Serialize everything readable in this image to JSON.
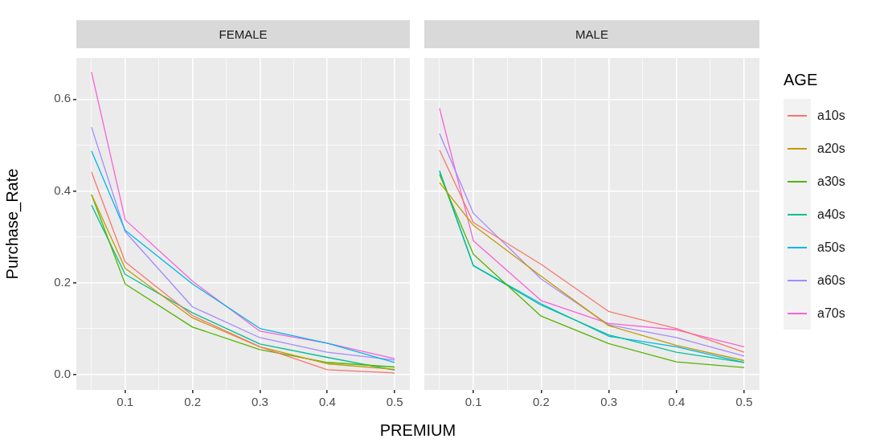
{
  "chart_data": [
    {
      "type": "line",
      "title": "FEMALE",
      "xlabel": "PREMIUM",
      "ylabel": "Purchase_Rate",
      "x": [
        0.05,
        0.1,
        0.2,
        0.3,
        0.4,
        0.5
      ],
      "xlim": [
        0.0275,
        0.5225
      ],
      "xticks": [
        {
          "value": 0.05,
          "label": null
        },
        0.1,
        {
          "value": 0.15,
          "label": null
        },
        0.2,
        {
          "value": 0.25,
          "label": null
        },
        0.3,
        {
          "value": 0.35,
          "label": null
        },
        0.4,
        {
          "value": 0.45,
          "label": null
        },
        0.5
      ],
      "ylim": [
        -0.034,
        0.69
      ],
      "yticks": [
        {
          "value": 0,
          "label": "0.0"
        },
        {
          "value": 0.1,
          "label": null
        },
        0.2,
        {
          "value": 0.3,
          "label": null
        },
        0.4,
        {
          "value": 0.5,
          "label": null
        },
        0.6
      ],
      "grid": true,
      "series": [
        {
          "color": "#f8766d",
          "values": [
            0.441,
            0.245,
            0.128,
            0.06,
            0.01,
            0.003
          ]
        },
        {
          "color": "#c49a00",
          "values": [
            0.392,
            0.231,
            0.123,
            0.06,
            0.023,
            0.011
          ]
        },
        {
          "color": "#53b400",
          "values": [
            0.392,
            0.197,
            0.103,
            0.054,
            0.026,
            0.016
          ]
        },
        {
          "color": "#00c094",
          "values": [
            0.369,
            0.218,
            0.134,
            0.066,
            0.037,
            0.009
          ]
        },
        {
          "color": "#00b6eb",
          "values": [
            0.487,
            0.314,
            0.197,
            0.1,
            0.068,
            0.026
          ]
        },
        {
          "color": "#a58aff",
          "values": [
            0.539,
            0.311,
            0.147,
            0.08,
            0.048,
            0.031
          ]
        },
        {
          "color": "#fb61d7",
          "values": [
            0.659,
            0.337,
            0.203,
            0.094,
            0.068,
            0.034
          ]
        }
      ]
    },
    {
      "type": "line",
      "title": "MALE",
      "x": [
        0.05,
        0.1,
        0.2,
        0.3,
        0.4,
        0.5
      ],
      "xlim": [
        0.0275,
        0.5225
      ],
      "xticks": [
        {
          "value": 0.05,
          "label": null
        },
        0.1,
        {
          "value": 0.15,
          "label": null
        },
        0.2,
        {
          "value": 0.25,
          "label": null
        },
        0.3,
        {
          "value": 0.35,
          "label": null
        },
        0.4,
        {
          "value": 0.45,
          "label": null
        },
        0.5
      ],
      "ylim": [
        -0.034,
        0.69
      ],
      "yticks": [
        0,
        0.1,
        0.2,
        0.3,
        0.4,
        0.5,
        0.6
      ],
      "grid": true,
      "tick_labels": "x",
      "legend": "right",
      "legend_title": "AGE",
      "series": [
        {
          "name": "a10s",
          "color": "#f8766d",
          "values": [
            0.489,
            0.331,
            0.24,
            0.137,
            0.1,
            0.048
          ]
        },
        {
          "name": "a20s",
          "color": "#c49a00",
          "values": [
            0.418,
            0.325,
            0.214,
            0.106,
            0.063,
            0.03
          ]
        },
        {
          "name": "a30s",
          "color": "#53b400",
          "values": [
            0.436,
            0.262,
            0.127,
            0.067,
            0.027,
            0.015
          ]
        },
        {
          "name": "a40s",
          "color": "#00c094",
          "values": [
            0.442,
            0.237,
            0.151,
            0.086,
            0.048,
            0.026
          ]
        },
        {
          "name": "a50s",
          "color": "#00b6eb",
          "values": [
            0.444,
            0.237,
            0.154,
            0.083,
            0.06,
            0.026
          ]
        },
        {
          "name": "a60s",
          "color": "#a58aff",
          "values": [
            0.525,
            0.351,
            0.208,
            0.108,
            0.08,
            0.04
          ]
        },
        {
          "name": "a70s",
          "color": "#fb61d7",
          "values": [
            0.58,
            0.291,
            0.161,
            0.111,
            0.097,
            0.06
          ]
        }
      ]
    }
  ]
}
